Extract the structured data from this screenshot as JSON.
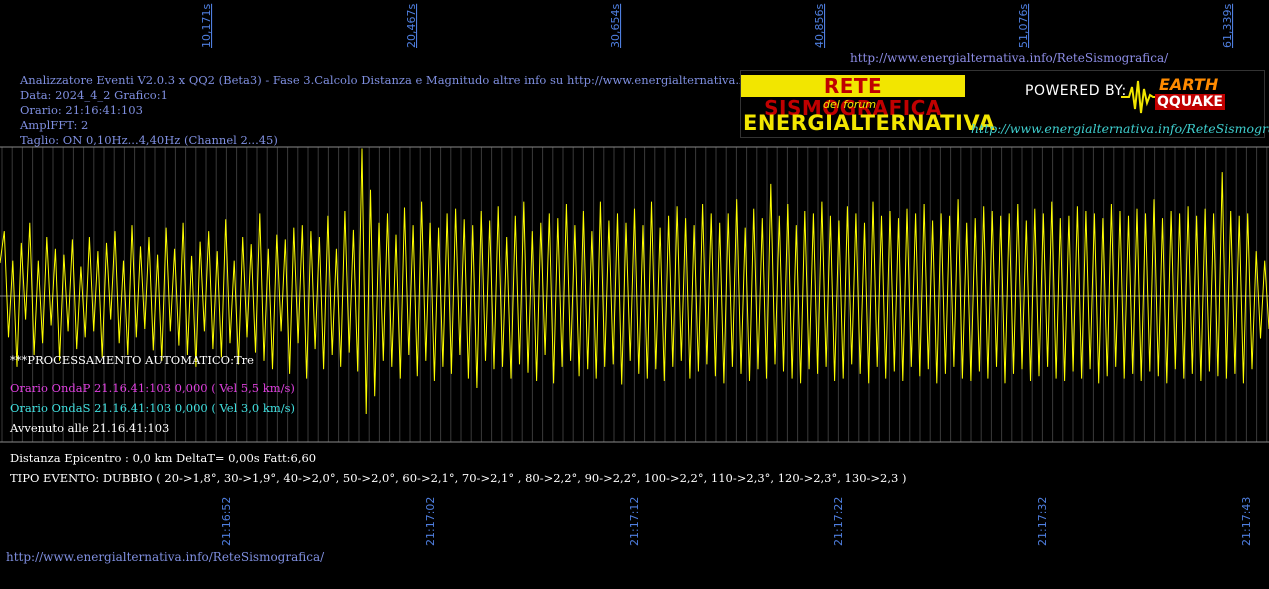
{
  "top_link": "http://www.energialternativa.info/ReteSismografica/",
  "bottom_link": "http://www.energialternativa.info/ReteSismografica/",
  "header_lines": [
    "Analizzatore Eventi V2.0.3 x QQ2 (Beta3) - Fase 3.Calcolo Distanza e Magnitudo altre info su http://www.energialternativa.info/ReteSism",
    "Data: 2024_4_2 Grafico:1",
    "Orario: 21:16:41:103",
    "AmplFFT: 2",
    "Taglio: ON 0,10Hz...4,40Hz       (Channel 2...45)"
  ],
  "processing": {
    "title": "***PROCESSAMENTO AUTOMATICO:Tre",
    "onda_p": "Orario OndaP 21.16.41:103  0,000 ( Vel 5,5 km/s)",
    "onda_s": "Orario OndaS 21.16.41:103  0,000 ( Vel 3,0 km/s)",
    "avvenuto": "Avvenuto alle 21.16.41:103",
    "distanza": "Distanza Epicentro : 0,0 km DeltaT= 0,00s  Fatt:6,60",
    "tipo_evento": "TIPO EVENTO: DUBBIO ( 20->1,8°, 30->1,9°, 40->2,0°, 50->2,0°, 60->2,1°, 70->2,1° , 80->2,2°, 90->2,2°, 100->2,2°, 110->2,3°, 120->2,3°, 130->2,3 )"
  },
  "banner": {
    "title": "RETE SISMOGRAFICA",
    "subtitle": "del forum",
    "name": "ENERGIALTERNATIVA",
    "powered_by": "POWERED BY:",
    "logo_top": "EARTH",
    "logo_bottom": "QQUAKE",
    "url": "http://www.energialternativa.info/ReteSismografica"
  },
  "colors": {
    "background": "#000000",
    "trace": "#ffff00",
    "gridline": "#8a8a8a",
    "axis_label": "#4f7fe0",
    "header_text": "#7f8fe0",
    "onda_p": "#e040e0",
    "onda_s": "#40e0e0"
  },
  "chart_data": {
    "type": "line",
    "title": "",
    "xlabel": "",
    "ylabel": "",
    "grid": true,
    "x_range_seconds": [
      0,
      62.5
    ],
    "y_range": [
      -1,
      1
    ],
    "top_tick_labels": [
      "10,171s",
      "20,467s",
      "30,654s",
      "40,856s",
      "51,076s",
      "61,339s"
    ],
    "bottom_tick_labels": [
      "21:16:52",
      "21:17:02",
      "21:17:12",
      "21:17:22",
      "21:17:32",
      "21:17:43"
    ],
    "series": [
      {
        "values": [
          0.28,
          0.55,
          -0.35,
          0.3,
          -0.6,
          0.45,
          -0.2,
          0.62,
          -0.5,
          0.3,
          -0.4,
          0.5,
          -0.25,
          0.4,
          -0.55,
          0.35,
          -0.3,
          0.48,
          -0.45,
          0.25,
          -0.35,
          0.5,
          -0.3,
          0.38,
          -0.52,
          0.45,
          -0.2,
          0.55,
          -0.4,
          0.3,
          -0.5,
          0.6,
          -0.35,
          0.42,
          -0.28,
          0.5,
          -0.46,
          0.35,
          -0.55,
          0.58,
          -0.3,
          0.4,
          -0.42,
          0.62,
          -0.5,
          0.34,
          -0.6,
          0.46,
          -0.3,
          0.55,
          -0.45,
          0.38,
          -0.52,
          0.65,
          -0.4,
          0.3,
          -0.58,
          0.5,
          -0.35,
          0.44,
          -0.48,
          0.7,
          -0.55,
          0.4,
          -0.62,
          0.52,
          -0.3,
          0.48,
          -0.66,
          0.58,
          -0.4,
          0.6,
          -0.7,
          0.55,
          -0.45,
          0.5,
          -0.62,
          0.68,
          -0.5,
          0.4,
          -0.6,
          0.72,
          -0.48,
          0.56,
          -0.64,
          1.25,
          -1.0,
          0.9,
          -0.85,
          0.62,
          -0.55,
          0.7,
          -0.6,
          0.52,
          -0.7,
          0.75,
          -0.5,
          0.6,
          -0.68,
          0.8,
          -0.55,
          0.62,
          -0.72,
          0.58,
          -0.6,
          0.7,
          -0.66,
          0.74,
          -0.5,
          0.65,
          -0.7,
          0.6,
          -0.78,
          0.72,
          -0.55,
          0.64,
          -0.62,
          0.76,
          -0.6,
          0.5,
          -0.7,
          0.68,
          -0.58,
          0.8,
          -0.65,
          0.55,
          -0.72,
          0.62,
          -0.5,
          0.7,
          -0.74,
          0.66,
          -0.6,
          0.78,
          -0.55,
          0.6,
          -0.68,
          0.72,
          -0.62,
          0.55,
          -0.7,
          0.8,
          -0.6,
          0.64,
          -0.58,
          0.7,
          -0.75,
          0.62,
          -0.55,
          0.74,
          -0.66,
          0.6,
          -0.7,
          0.8,
          -0.62,
          0.58,
          -0.72,
          0.68,
          -0.6,
          0.76,
          -0.55,
          0.66,
          -0.7,
          0.6,
          -0.64,
          0.78,
          -0.58,
          0.7,
          -0.68,
          0.62,
          -0.74,
          0.7,
          -0.6,
          0.82,
          -0.66,
          0.58,
          -0.72,
          0.74,
          -0.62,
          0.66,
          -0.7,
          0.95,
          -0.58,
          0.68,
          -0.64,
          0.78,
          -0.7,
          0.6,
          -0.74,
          0.72,
          -0.62,
          0.7,
          -0.66,
          0.8,
          -0.6,
          0.68,
          -0.72,
          0.64,
          -0.7,
          0.76,
          -0.58,
          0.7,
          -0.66,
          0.62,
          -0.74,
          0.8,
          -0.6,
          0.68,
          -0.7,
          0.72,
          -0.64,
          0.66,
          -0.72,
          0.74,
          -0.6,
          0.7,
          -0.68,
          0.78,
          -0.62,
          0.64,
          -0.74,
          0.7,
          -0.66,
          0.68,
          -0.6,
          0.82,
          -0.7,
          0.62,
          -0.72,
          0.66,
          -0.64,
          0.76,
          -0.7,
          0.72,
          -0.6,
          0.68,
          -0.74,
          0.7,
          -0.66,
          0.78,
          -0.62,
          0.64,
          -0.72,
          0.74,
          -0.68,
          0.7,
          -0.6,
          0.8,
          -0.7,
          0.66,
          -0.72,
          0.68,
          -0.64,
          0.76,
          -0.7,
          0.72,
          -0.62,
          0.7,
          -0.74,
          0.66,
          -0.68,
          0.78,
          -0.6,
          0.72,
          -0.7,
          0.68,
          -0.66,
          0.74,
          -0.72,
          0.7,
          -0.64,
          0.82,
          -0.68,
          0.66,
          -0.74,
          0.72,
          -0.62,
          0.7,
          -0.7,
          0.76,
          -0.66,
          0.68,
          -0.72,
          0.74,
          -0.64,
          0.7,
          -0.68,
          1.05,
          -0.7,
          0.72,
          -0.66,
          0.68,
          -0.74,
          0.7,
          -0.62,
          0.38,
          -0.36,
          0.3,
          -0.28
        ]
      }
    ]
  }
}
